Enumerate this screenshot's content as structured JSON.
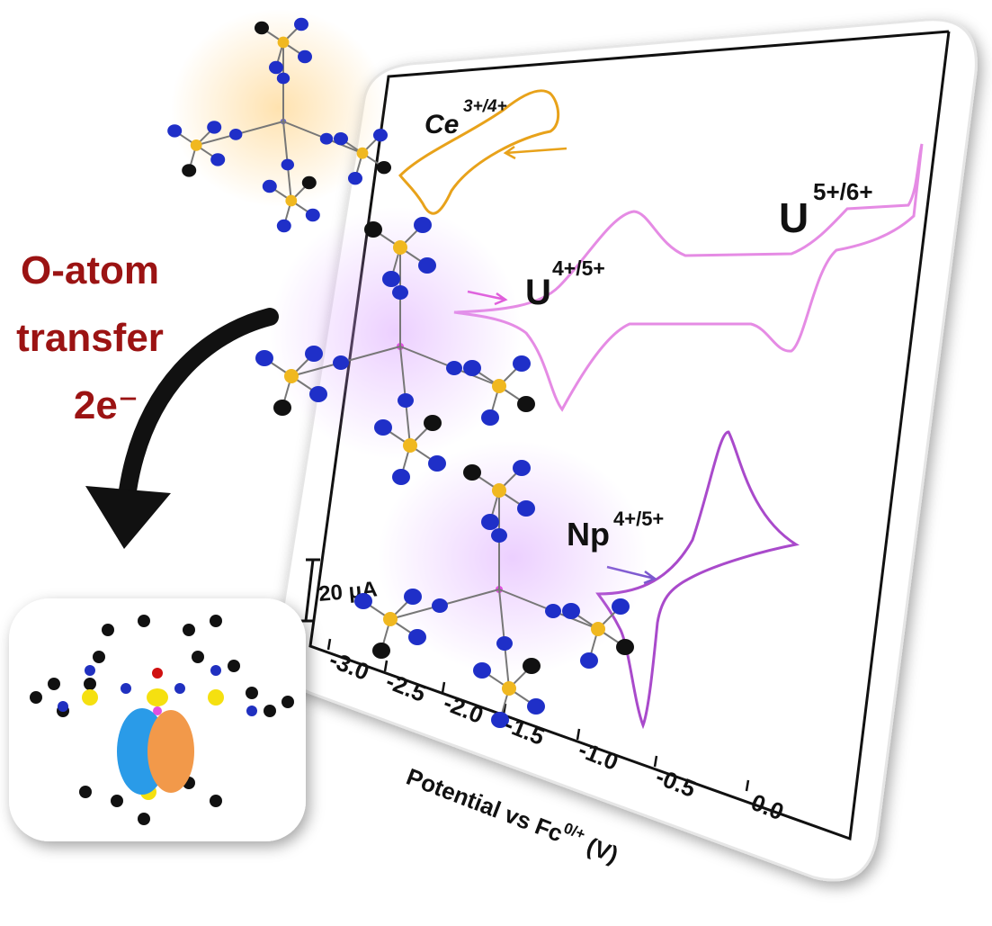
{
  "left_label": {
    "line1": "O-atom",
    "line2": "transfer",
    "line3": "2e⁻"
  },
  "plot": {
    "x_label_main": "Potential vs Fc",
    "x_label_sup": "0/+",
    "x_label_unit": " (V)",
    "x_ticks": [
      "-3.0",
      "-2.5",
      "-2.0",
      "-1.5",
      "-1.0",
      "-0.5",
      "0.0"
    ],
    "scale_bar": "20 μA",
    "couples": [
      {
        "element": "Ce",
        "charge": "3+/4+"
      },
      {
        "element": "U",
        "charge": "4+/5+"
      },
      {
        "element": "U",
        "charge": "5+/6+"
      },
      {
        "element": "Np",
        "charge": "4+/5+"
      }
    ]
  }
}
